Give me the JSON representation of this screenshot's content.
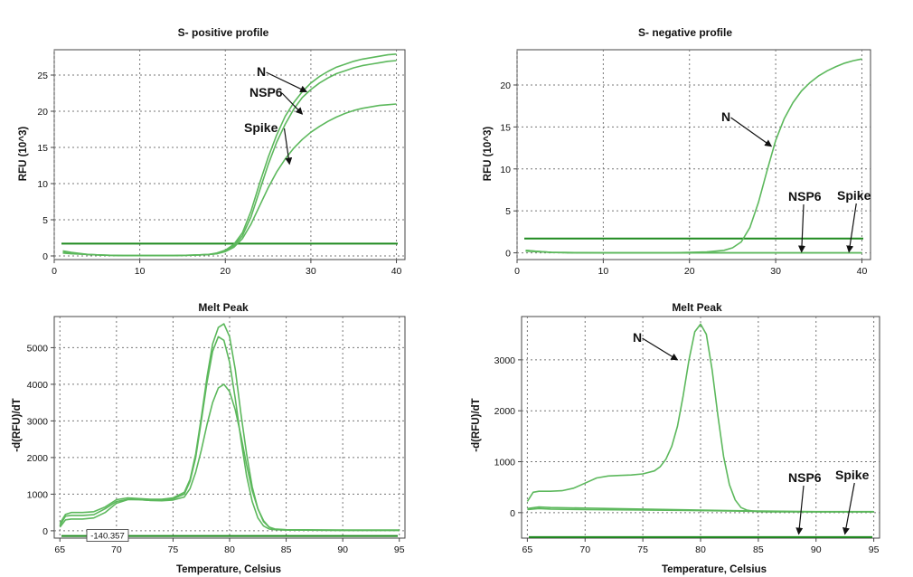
{
  "colors": {
    "curve": "#5cb85c",
    "threshold": "#1e8a1e",
    "grid": "#777777",
    "frame": "#444444"
  },
  "chart_data": [
    {
      "type": "line",
      "title": "S- positive profile",
      "ylabel": "RFU (10^3)",
      "xlabel": "",
      "xlim": [
        0,
        41
      ],
      "ylim": [
        -0.5,
        28.5
      ],
      "xticks": [
        0,
        10,
        20,
        30,
        40
      ],
      "yticks": [
        0,
        5,
        10,
        15,
        20,
        25
      ],
      "grid": true,
      "threshold": 1.7,
      "series": [
        {
          "name": "N",
          "x": [
            1,
            2,
            4,
            6,
            8,
            10,
            12,
            14,
            16,
            18,
            19,
            20,
            21,
            22,
            23,
            24,
            25,
            26,
            27,
            28,
            29,
            30,
            31,
            32,
            33,
            34,
            35,
            36,
            37,
            38,
            39,
            40
          ],
          "y": [
            0.7,
            0.5,
            0.2,
            0.1,
            0.05,
            0.05,
            0.05,
            0.05,
            0.1,
            0.2,
            0.4,
            0.8,
            1.6,
            3.2,
            6.2,
            10.0,
            13.6,
            16.7,
            19.3,
            21.2,
            22.7,
            23.9,
            24.8,
            25.5,
            26.1,
            26.5,
            26.9,
            27.2,
            27.4,
            27.6,
            27.8,
            27.9
          ]
        },
        {
          "name": "NSP6",
          "x": [
            1,
            2,
            4,
            6,
            8,
            10,
            12,
            14,
            16,
            18,
            19,
            20,
            21,
            22,
            23,
            24,
            25,
            26,
            27,
            28,
            29,
            30,
            31,
            32,
            33,
            34,
            35,
            36,
            37,
            38,
            39,
            40
          ],
          "y": [
            0.5,
            0.4,
            0.2,
            0.1,
            0.05,
            0.05,
            0.05,
            0.05,
            0.1,
            0.2,
            0.3,
            0.7,
            1.4,
            2.8,
            5.4,
            9.0,
            12.6,
            15.7,
            18.2,
            20.3,
            21.9,
            23.0,
            23.9,
            24.6,
            25.2,
            25.6,
            26.0,
            26.3,
            26.5,
            26.7,
            26.9,
            27.0
          ]
        },
        {
          "name": "Spike",
          "x": [
            1,
            2,
            4,
            6,
            8,
            10,
            12,
            14,
            16,
            18,
            19,
            20,
            21,
            22,
            23,
            24,
            25,
            26,
            27,
            28,
            29,
            30,
            31,
            32,
            33,
            34,
            35,
            36,
            37,
            38,
            39,
            40
          ],
          "y": [
            0.4,
            0.3,
            0.2,
            0.1,
            0.05,
            0.05,
            0.05,
            0.05,
            0.1,
            0.2,
            0.3,
            0.6,
            1.2,
            2.4,
            4.4,
            6.9,
            9.4,
            11.6,
            13.4,
            14.9,
            16.1,
            17.1,
            17.9,
            18.6,
            19.2,
            19.7,
            20.1,
            20.4,
            20.6,
            20.8,
            20.9,
            21.0
          ]
        }
      ],
      "annotations": [
        {
          "text": "N",
          "target": [
            29.5,
            22.7
          ]
        },
        {
          "text": "NSP6",
          "target": [
            29.0,
            19.6
          ]
        },
        {
          "text": "Spike",
          "target": [
            27.5,
            12.7
          ]
        }
      ]
    },
    {
      "type": "line",
      "title": "S- negative profile",
      "ylabel": "RFU (10^3)",
      "xlabel": "",
      "xlim": [
        0,
        41
      ],
      "ylim": [
        -0.8,
        24.2
      ],
      "xticks": [
        0,
        10,
        20,
        30,
        40
      ],
      "yticks": [
        0,
        5,
        10,
        15,
        20
      ],
      "grid": true,
      "threshold": 1.7,
      "series": [
        {
          "name": "N",
          "x": [
            1,
            2,
            4,
            6,
            8,
            10,
            12,
            14,
            16,
            18,
            20,
            22,
            24,
            25,
            26,
            27,
            28,
            29,
            30,
            31,
            32,
            33,
            34,
            35,
            36,
            37,
            38,
            39,
            40
          ],
          "y": [
            0.3,
            0.2,
            0.05,
            0.0,
            0.0,
            0.0,
            0.0,
            0.0,
            0.0,
            0.0,
            0.05,
            0.1,
            0.3,
            0.6,
            1.3,
            3.0,
            6.0,
            9.8,
            13.4,
            16.0,
            17.9,
            19.3,
            20.3,
            21.1,
            21.7,
            22.2,
            22.6,
            22.9,
            23.1
          ]
        },
        {
          "name": "NSP6",
          "x": [
            1,
            2,
            4,
            10,
            20,
            30,
            40
          ],
          "y": [
            0.3,
            0.2,
            0.05,
            0.0,
            0.0,
            0.0,
            0.0
          ]
        },
        {
          "name": "Spike",
          "x": [
            1,
            2,
            4,
            10,
            20,
            30,
            40
          ],
          "y": [
            0.2,
            0.15,
            0.05,
            0.0,
            0.0,
            0.0,
            0.0
          ]
        }
      ],
      "annotations": [
        {
          "text": "N",
          "target": [
            29.5,
            12.7
          ]
        },
        {
          "text": "NSP6",
          "target": [
            33.0,
            0.1
          ]
        },
        {
          "text": "Spike",
          "target": [
            38.5,
            0.1
          ]
        }
      ]
    },
    {
      "type": "line",
      "title": "Melt Peak",
      "ylabel": "-d(RFU)/dT",
      "xlabel": "Temperature, Celsius",
      "xlim": [
        64.5,
        95.5
      ],
      "ylim": [
        -200,
        5850
      ],
      "xticks": [
        65,
        70,
        75,
        80,
        85,
        90,
        95
      ],
      "yticks": [
        0,
        1000,
        2000,
        3000,
        4000,
        5000
      ],
      "grid": true,
      "threshold": -140,
      "cursor_label": "-140.357",
      "series": [
        {
          "name": "N",
          "x": [
            65,
            65.5,
            66,
            67,
            68,
            69,
            70,
            71,
            72,
            73,
            74,
            75,
            76,
            76.5,
            77,
            77.5,
            78,
            78.5,
            79,
            79.5,
            80,
            80.5,
            81,
            81.5,
            82,
            82.5,
            83,
            83.5,
            84,
            85,
            90,
            95
          ],
          "y": [
            200,
            450,
            500,
            500,
            520,
            650,
            850,
            900,
            880,
            860,
            860,
            900,
            1050,
            1400,
            2100,
            3100,
            4200,
            5100,
            5550,
            5650,
            5300,
            4400,
            3200,
            2100,
            1200,
            600,
            250,
            100,
            50,
            30,
            20,
            20
          ]
        },
        {
          "name": "NSP6",
          "x": [
            65,
            65.5,
            66,
            67,
            68,
            69,
            70,
            71,
            72,
            73,
            74,
            75,
            76,
            76.5,
            77,
            77.5,
            78,
            78.5,
            79,
            79.5,
            80,
            80.5,
            81,
            81.5,
            82,
            82.5,
            83,
            83.5,
            84,
            85,
            90,
            95
          ],
          "y": [
            150,
            400,
            420,
            420,
            440,
            600,
            800,
            860,
            850,
            830,
            830,
            870,
            1000,
            1350,
            2000,
            3000,
            4050,
            4900,
            5300,
            5200,
            4600,
            3600,
            2500,
            1500,
            800,
            350,
            130,
            50,
            30,
            20,
            10,
            10
          ]
        },
        {
          "name": "Spike",
          "x": [
            65,
            65.5,
            66,
            67,
            68,
            69,
            70,
            71,
            72,
            73,
            74,
            75,
            76,
            76.5,
            77,
            77.5,
            78,
            78.5,
            79,
            79.5,
            80,
            80.5,
            81,
            81.5,
            82,
            82.5,
            83,
            83.5,
            84,
            85,
            90,
            95
          ],
          "y": [
            100,
            300,
            320,
            320,
            350,
            500,
            750,
            850,
            850,
            830,
            820,
            840,
            920,
            1150,
            1600,
            2200,
            2900,
            3500,
            3900,
            4000,
            3800,
            3300,
            2600,
            1800,
            1100,
            600,
            280,
            100,
            40,
            20,
            10,
            10
          ]
        }
      ]
    },
    {
      "type": "line",
      "title": "Melt Peak",
      "ylabel": "-d(RFU)/dT",
      "xlabel": "Temperature, Celsius",
      "xlim": [
        64.5,
        95.5
      ],
      "ylim": [
        -500,
        3850
      ],
      "xticks": [
        65,
        70,
        75,
        80,
        85,
        90,
        95
      ],
      "yticks": [
        0,
        1000,
        2000,
        3000
      ],
      "grid": true,
      "threshold": -480,
      "series": [
        {
          "name": "N",
          "x": [
            65,
            65.5,
            66,
            67,
            68,
            69,
            70,
            71,
            72,
            73,
            74,
            75,
            76,
            76.5,
            77,
            77.5,
            78,
            78.5,
            79,
            79.5,
            80,
            80.5,
            81,
            81.5,
            82,
            82.5,
            83,
            83.5,
            84,
            84.5,
            85,
            86,
            88,
            90,
            92,
            95
          ],
          "y": [
            220,
            400,
            420,
            420,
            430,
            480,
            580,
            680,
            720,
            730,
            740,
            760,
            820,
            900,
            1050,
            1300,
            1700,
            2300,
            3000,
            3550,
            3700,
            3500,
            2800,
            1900,
            1100,
            550,
            250,
            100,
            50,
            30,
            20,
            15,
            15,
            15,
            15,
            15
          ]
        },
        {
          "name": "NSP6",
          "x": [
            65,
            66,
            67,
            70,
            75,
            80,
            85,
            90,
            95
          ],
          "y": [
            80,
            110,
            100,
            90,
            70,
            50,
            30,
            20,
            20
          ]
        },
        {
          "name": "Spike",
          "x": [
            65,
            66,
            67,
            70,
            75,
            80,
            85,
            90,
            95
          ],
          "y": [
            60,
            80,
            70,
            60,
            50,
            40,
            25,
            15,
            15
          ]
        }
      ],
      "annotations": [
        {
          "text": "N",
          "target": [
            78.0,
            3000
          ]
        },
        {
          "text": "NSP6",
          "target": [
            88.5,
            -420
          ]
        },
        {
          "text": "Spike",
          "target": [
            92.5,
            -420
          ]
        }
      ]
    }
  ]
}
